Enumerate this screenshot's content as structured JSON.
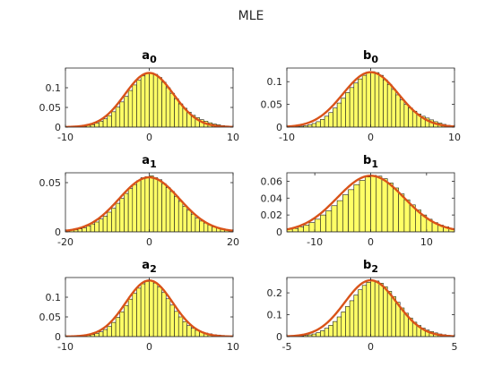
{
  "figure": {
    "suptitle": "MLE"
  },
  "chart_data": [
    {
      "type": "bar",
      "title": "a",
      "title_sub": "0",
      "xlim": [
        -10,
        10
      ],
      "ylim": [
        0,
        0.15
      ],
      "xticks": [
        -10,
        0,
        10
      ],
      "xtick_labels": [
        "-10",
        "0",
        "10"
      ],
      "yticks": [
        0,
        0.05,
        0.1
      ],
      "ytick_labels": [
        "0",
        "0.05",
        "0.1"
      ],
      "bin_width": 0.5,
      "x": [
        -8.75,
        -8.25,
        -7.75,
        -7.25,
        -6.75,
        -6.25,
        -5.75,
        -5.25,
        -4.75,
        -4.25,
        -3.75,
        -3.25,
        -2.75,
        -2.25,
        -1.75,
        -1.25,
        -0.75,
        -0.25,
        0.25,
        0.75,
        1.25,
        1.75,
        2.25,
        2.75,
        3.25,
        3.75,
        4.25,
        4.75,
        5.25,
        5.75,
        6.25,
        6.75,
        7.25,
        7.75,
        8.25,
        8.75,
        9.25,
        9.75
      ],
      "values": [
        0.001,
        0.002,
        0.002,
        0.004,
        0.006,
        0.01,
        0.015,
        0.021,
        0.029,
        0.039,
        0.051,
        0.064,
        0.078,
        0.093,
        0.107,
        0.119,
        0.13,
        0.137,
        0.138,
        0.134,
        0.126,
        0.114,
        0.1,
        0.086,
        0.072,
        0.059,
        0.048,
        0.038,
        0.03,
        0.024,
        0.019,
        0.015,
        0.011,
        0.008,
        0.006,
        0.004,
        0.003,
        0.002
      ],
      "fit": {
        "mean": 0,
        "std": 2.9,
        "peak": 0.1376
      }
    },
    {
      "type": "bar",
      "title": "b",
      "title_sub": "0",
      "xlim": [
        -10,
        10
      ],
      "ylim": [
        0,
        0.13
      ],
      "xticks": [
        -10,
        0,
        10
      ],
      "xtick_labels": [
        "-10",
        "0",
        "10"
      ],
      "yticks": [
        0,
        0.05,
        0.1
      ],
      "ytick_labels": [
        "0",
        "0.05",
        "0.1"
      ],
      "bin_width": 0.5,
      "x": [
        -8.75,
        -8.25,
        -7.75,
        -7.25,
        -6.75,
        -6.25,
        -5.75,
        -5.25,
        -4.75,
        -4.25,
        -3.75,
        -3.25,
        -2.75,
        -2.25,
        -1.75,
        -1.25,
        -0.75,
        -0.25,
        0.25,
        0.75,
        1.25,
        1.75,
        2.25,
        2.75,
        3.25,
        3.75,
        4.25,
        4.75,
        5.25,
        5.75,
        6.25,
        6.75,
        7.25,
        7.75,
        8.25,
        8.75,
        9.25,
        9.75
      ],
      "values": [
        0.001,
        0.002,
        0.003,
        0.005,
        0.008,
        0.012,
        0.017,
        0.024,
        0.032,
        0.042,
        0.053,
        0.064,
        0.076,
        0.087,
        0.097,
        0.106,
        0.114,
        0.12,
        0.122,
        0.12,
        0.114,
        0.104,
        0.094,
        0.083,
        0.071,
        0.06,
        0.05,
        0.042,
        0.035,
        0.029,
        0.024,
        0.02,
        0.016,
        0.012,
        0.009,
        0.006,
        0.004,
        0.003
      ],
      "fit": {
        "mean": 0,
        "std": 3.3,
        "peak": 0.1209
      }
    },
    {
      "type": "bar",
      "title": "a",
      "title_sub": "1",
      "xlim": [
        -20,
        20
      ],
      "ylim": [
        0,
        0.06
      ],
      "xticks": [
        -20,
        0,
        20
      ],
      "xtick_labels": [
        "-20",
        "0",
        "20"
      ],
      "yticks": [
        0,
        0.05
      ],
      "ytick_labels": [
        "0",
        "0.05"
      ],
      "bin_width": 1,
      "x": [
        -19.5,
        -18.5,
        -17.5,
        -16.5,
        -15.5,
        -14.5,
        -13.5,
        -12.5,
        -11.5,
        -10.5,
        -9.5,
        -8.5,
        -7.5,
        -6.5,
        -5.5,
        -4.5,
        -3.5,
        -2.5,
        -1.5,
        -0.5,
        0.5,
        1.5,
        2.5,
        3.5,
        4.5,
        5.5,
        6.5,
        7.5,
        8.5,
        9.5,
        10.5,
        11.5,
        12.5,
        13.5,
        14.5,
        15.5,
        16.5,
        17.5,
        18.5,
        19.5
      ],
      "values": [
        0.001,
        0.002,
        0.002,
        0.003,
        0.004,
        0.006,
        0.008,
        0.01,
        0.013,
        0.016,
        0.02,
        0.024,
        0.029,
        0.034,
        0.039,
        0.044,
        0.048,
        0.052,
        0.055,
        0.056,
        0.057,
        0.055,
        0.053,
        0.049,
        0.045,
        0.041,
        0.036,
        0.031,
        0.026,
        0.022,
        0.018,
        0.014,
        0.011,
        0.009,
        0.007,
        0.005,
        0.004,
        0.003,
        0.002,
        0.001
      ],
      "fit": {
        "mean": 0,
        "std": 7.2,
        "peak": 0.0554
      }
    },
    {
      "type": "bar",
      "title": "b",
      "title_sub": "1",
      "xlim": [
        -15,
        15
      ],
      "ylim": [
        0,
        0.07
      ],
      "xticks": [
        -10,
        0,
        10
      ],
      "xtick_labels": [
        "-10",
        "0",
        "10"
      ],
      "yticks": [
        0,
        0.02,
        0.04,
        0.06
      ],
      "ytick_labels": [
        "0",
        "0.02",
        "0.04",
        "0.06"
      ],
      "bin_width": 1,
      "x": [
        -14.5,
        -13.5,
        -12.5,
        -11.5,
        -10.5,
        -9.5,
        -8.5,
        -7.5,
        -6.5,
        -5.5,
        -4.5,
        -3.5,
        -2.5,
        -1.5,
        -0.5,
        0.5,
        1.5,
        2.5,
        3.5,
        4.5,
        5.5,
        6.5,
        7.5,
        8.5,
        9.5,
        10.5,
        11.5,
        12.5,
        13.5,
        14.5
      ],
      "values": [
        0.003,
        0.004,
        0.006,
        0.008,
        0.011,
        0.015,
        0.02,
        0.025,
        0.031,
        0.037,
        0.044,
        0.05,
        0.056,
        0.061,
        0.065,
        0.067,
        0.066,
        0.063,
        0.058,
        0.052,
        0.045,
        0.038,
        0.032,
        0.026,
        0.02,
        0.015,
        0.011,
        0.008,
        0.006,
        0.004
      ],
      "fit": {
        "mean": 0,
        "std": 6.0,
        "peak": 0.0665
      }
    },
    {
      "type": "bar",
      "title": "a",
      "title_sub": "2",
      "xlim": [
        -10,
        10
      ],
      "ylim": [
        0,
        0.15
      ],
      "xticks": [
        -10,
        0,
        10
      ],
      "xtick_labels": [
        "-10",
        "0",
        "10"
      ],
      "yticks": [
        0,
        0.05,
        0.1
      ],
      "ytick_labels": [
        "0",
        "0.05",
        "0.1"
      ],
      "bin_width": 0.5,
      "x": [
        -8.75,
        -8.25,
        -7.75,
        -7.25,
        -6.75,
        -6.25,
        -5.75,
        -5.25,
        -4.75,
        -4.25,
        -3.75,
        -3.25,
        -2.75,
        -2.25,
        -1.75,
        -1.25,
        -0.75,
        -0.25,
        0.25,
        0.75,
        1.25,
        1.75,
        2.25,
        2.75,
        3.25,
        3.75,
        4.25,
        4.75,
        5.25,
        5.75,
        6.25,
        6.75,
        7.25,
        7.75,
        8.25,
        8.75,
        9.25,
        9.75
      ],
      "values": [
        0.001,
        0.001,
        0.002,
        0.003,
        0.005,
        0.008,
        0.012,
        0.018,
        0.026,
        0.036,
        0.049,
        0.063,
        0.079,
        0.095,
        0.11,
        0.123,
        0.134,
        0.14,
        0.141,
        0.136,
        0.126,
        0.112,
        0.096,
        0.08,
        0.064,
        0.05,
        0.038,
        0.028,
        0.021,
        0.016,
        0.012,
        0.009,
        0.007,
        0.005,
        0.004,
        0.003,
        0.002,
        0.001
      ],
      "fit": {
        "mean": 0,
        "std": 2.8,
        "peak": 0.1425
      }
    },
    {
      "type": "bar",
      "title": "b",
      "title_sub": "2",
      "xlim": [
        -5,
        5
      ],
      "ylim": [
        0,
        0.27
      ],
      "xticks": [
        -5,
        0,
        5
      ],
      "xtick_labels": [
        "-5",
        "0",
        "5"
      ],
      "yticks": [
        0,
        0.1,
        0.2
      ],
      "ytick_labels": [
        "0",
        "0.1",
        "0.2"
      ],
      "bin_width": 0.25,
      "x": [
        -4.375,
        -4.125,
        -3.875,
        -3.625,
        -3.375,
        -3.125,
        -2.875,
        -2.625,
        -2.375,
        -2.125,
        -1.875,
        -1.625,
        -1.375,
        -1.125,
        -0.875,
        -0.625,
        -0.375,
        -0.125,
        0.125,
        0.375,
        0.625,
        0.875,
        1.125,
        1.375,
        1.625,
        1.875,
        2.125,
        2.375,
        2.625,
        2.875,
        3.125,
        3.375,
        3.625,
        3.875,
        4.125,
        4.375,
        4.625,
        4.875
      ],
      "values": [
        0.002,
        0.003,
        0.005,
        0.008,
        0.012,
        0.018,
        0.027,
        0.038,
        0.052,
        0.069,
        0.09,
        0.113,
        0.138,
        0.164,
        0.19,
        0.214,
        0.234,
        0.248,
        0.255,
        0.254,
        0.244,
        0.228,
        0.207,
        0.183,
        0.157,
        0.131,
        0.107,
        0.085,
        0.066,
        0.051,
        0.039,
        0.03,
        0.023,
        0.017,
        0.012,
        0.009,
        0.006,
        0.004
      ],
      "fit": {
        "mean": 0,
        "std": 1.55,
        "peak": 0.2574
      }
    }
  ]
}
